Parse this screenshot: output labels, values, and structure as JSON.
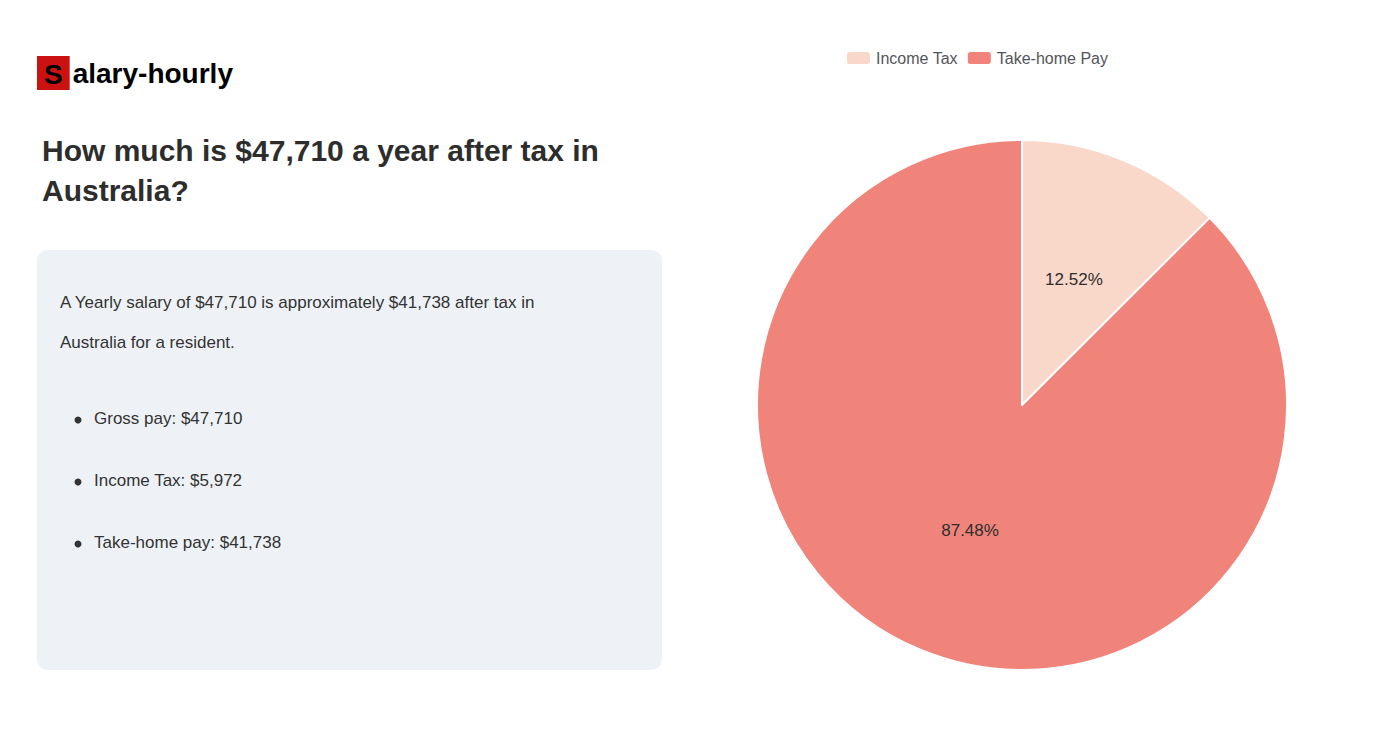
{
  "chart_data": {
    "type": "pie",
    "title": "How much is $47,710 a year after tax in\nAustralia?",
    "annotations": [
      "Salary-hourly",
      "A Yearly salary of $47,710 is approximately $41,738 after tax in",
      "Australia for a resident.",
      "Gross pay: $47,710",
      "Income Tax: $5,972",
      "Take-home pay: $41,738"
    ],
    "categories": [
      "Income Tax",
      "Take-home Pay"
    ],
    "values": [
      12.52,
      87.48
    ],
    "value_labels": [
      "12.52%",
      "87.48%"
    ],
    "colors": [
      "#f9d8ca",
      "#f0847a"
    ],
    "data_labels": true,
    "legend": "top"
  }
}
